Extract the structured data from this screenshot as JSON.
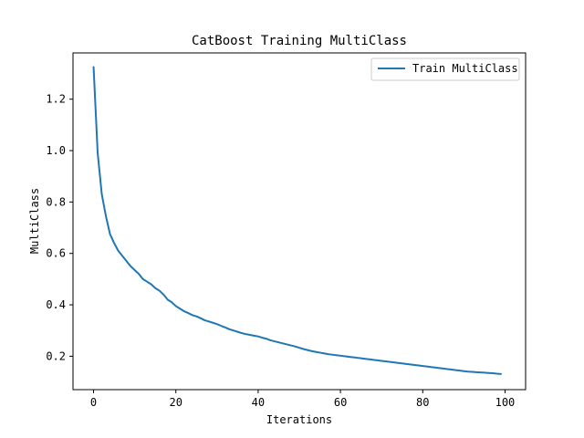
{
  "chart_data": {
    "type": "line",
    "title": "CatBoost Training MultiClass",
    "xlabel": "Iterations",
    "ylabel": "MultiClass",
    "xlim": [
      -5,
      105
    ],
    "ylim": [
      0.07,
      1.38
    ],
    "xticks": [
      0,
      20,
      40,
      60,
      80,
      100
    ],
    "xtick_labels": [
      "0",
      "20",
      "40",
      "60",
      "80",
      "100"
    ],
    "yticks": [
      0.2,
      0.4,
      0.6,
      0.8,
      1.0,
      1.2
    ],
    "ytick_labels": [
      "0.2",
      "0.4",
      "0.6",
      "0.8",
      "1.0",
      "1.2"
    ],
    "grid": false,
    "legend_position": "upper right",
    "series": [
      {
        "name": "Train MultiClass",
        "color": "#1f77b4",
        "x": [
          0,
          1,
          2,
          3,
          4,
          5,
          6,
          7,
          8,
          9,
          10,
          11,
          12,
          13,
          14,
          15,
          16,
          17,
          18,
          19,
          20,
          21,
          22,
          23,
          24,
          25,
          26,
          27,
          28,
          29,
          30,
          31,
          32,
          33,
          34,
          35,
          36,
          37,
          38,
          39,
          40,
          41,
          42,
          43,
          44,
          45,
          46,
          47,
          48,
          49,
          50,
          51,
          52,
          53,
          54,
          55,
          56,
          57,
          58,
          59,
          60,
          61,
          62,
          63,
          64,
          65,
          66,
          67,
          68,
          69,
          70,
          71,
          72,
          73,
          74,
          75,
          76,
          77,
          78,
          79,
          80,
          81,
          82,
          83,
          84,
          85,
          86,
          87,
          88,
          89,
          90,
          91,
          92,
          93,
          94,
          95,
          96,
          97,
          98,
          99
        ],
        "y": [
          1.325,
          0.99,
          0.83,
          0.745,
          0.675,
          0.64,
          0.61,
          0.59,
          0.57,
          0.55,
          0.535,
          0.52,
          0.5,
          0.49,
          0.48,
          0.465,
          0.455,
          0.44,
          0.42,
          0.41,
          0.395,
          0.385,
          0.375,
          0.368,
          0.36,
          0.355,
          0.348,
          0.34,
          0.335,
          0.33,
          0.325,
          0.318,
          0.312,
          0.305,
          0.3,
          0.295,
          0.29,
          0.286,
          0.283,
          0.28,
          0.277,
          0.272,
          0.268,
          0.262,
          0.258,
          0.254,
          0.25,
          0.246,
          0.242,
          0.238,
          0.233,
          0.228,
          0.224,
          0.22,
          0.217,
          0.214,
          0.211,
          0.208,
          0.206,
          0.204,
          0.202,
          0.2,
          0.198,
          0.196,
          0.194,
          0.192,
          0.19,
          0.188,
          0.186,
          0.184,
          0.182,
          0.18,
          0.178,
          0.176,
          0.174,
          0.172,
          0.17,
          0.168,
          0.166,
          0.164,
          0.162,
          0.16,
          0.158,
          0.156,
          0.154,
          0.152,
          0.15,
          0.148,
          0.146,
          0.144,
          0.142,
          0.14,
          0.139,
          0.138,
          0.137,
          0.136,
          0.135,
          0.134,
          0.132,
          0.131
        ]
      }
    ]
  }
}
